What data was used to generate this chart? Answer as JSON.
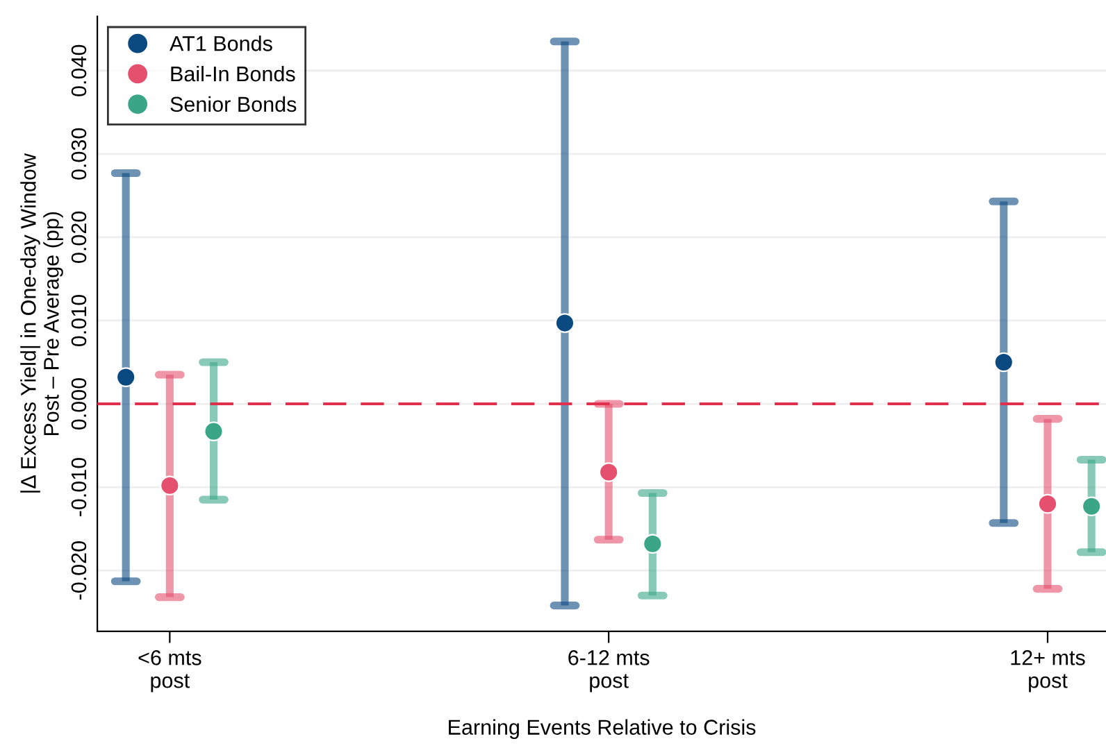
{
  "chart_data": {
    "type": "scatter",
    "xlabel": "Earning Events Relative to Crisis",
    "ylabel": "|Δ Excess Yield| in One-day Window\nPost – Pre Average (pp)",
    "categories": [
      "<6 mts\npost",
      "6-12 mts\npost",
      "12+ mts\npost"
    ],
    "series": [
      {
        "name": "AT1 Bonds",
        "color": "#0b4a80",
        "values": [
          0.0032,
          0.0097,
          0.005
        ],
        "errors": [
          [
            -0.0213,
            0.0277
          ],
          [
            -0.0242,
            0.0435
          ],
          [
            -0.0143,
            0.0243
          ]
        ]
      },
      {
        "name": "Bail-In Bonds",
        "color": "#e5506f",
        "values": [
          -0.0098,
          -0.0082,
          -0.012
        ],
        "errors": [
          [
            -0.0232,
            0.0035
          ],
          [
            -0.0163,
            0.0
          ],
          [
            -0.0222,
            -0.0018
          ]
        ]
      },
      {
        "name": "Senior Bonds",
        "color": "#3ba687",
        "values": [
          -0.0033,
          -0.0168,
          -0.0123
        ],
        "errors": [
          [
            -0.0115,
            0.005
          ],
          [
            -0.023,
            -0.0107
          ],
          [
            -0.0178,
            -0.0067
          ]
        ]
      }
    ],
    "ylim": [
      -0.0273,
      0.0465
    ],
    "yticks": [
      {
        "value": -0.02,
        "label": "-0.020"
      },
      {
        "value": -0.01,
        "label": "-0.010"
      },
      {
        "value": 0,
        "label": "0.000"
      },
      {
        "value": 0.01,
        "label": "0.010"
      },
      {
        "value": 0.02,
        "label": "0.020"
      },
      {
        "value": 0.03,
        "label": "0.030"
      },
      {
        "value": 0.04,
        "label": "0.040"
      }
    ],
    "ref_lines": [
      {
        "axis": "y",
        "value": 0,
        "color": "#e0304e",
        "line_style": "dashed"
      }
    ],
    "grid": "y",
    "legend": "top left",
    "marker": "circle"
  }
}
